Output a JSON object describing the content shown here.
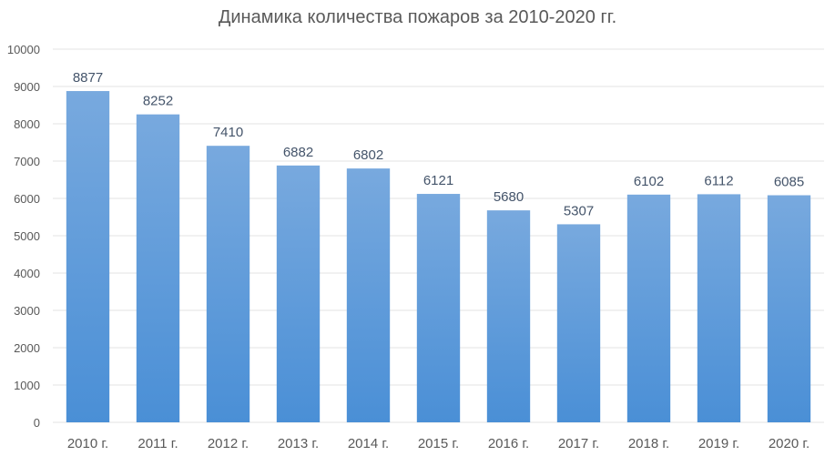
{
  "chart_data": {
    "type": "bar",
    "title": "Динамика количества пожаров за 2010-2020 гг.",
    "xlabel": "",
    "ylabel": "",
    "categories": [
      "2010 г.",
      "2011 г.",
      "2012 г.",
      "2013 г.",
      "2014 г.",
      "2015 г.",
      "2016 г.",
      "2017 г.",
      "2018 г.",
      "2019 г.",
      "2020 г."
    ],
    "values": [
      8877,
      8252,
      7410,
      6882,
      6802,
      6121,
      5680,
      5307,
      6102,
      6112,
      6085
    ],
    "ylim": [
      0,
      10000
    ],
    "yticks": [
      "0",
      "1000",
      "2000",
      "3000",
      "4000",
      "5000",
      "6000",
      "7000",
      "8000",
      "9000",
      "10000"
    ],
    "grid": true,
    "legend": "none",
    "colors": {
      "bar_top": "#78a9de",
      "bar_bottom": "#4a8fd6",
      "data_label": "#44546a",
      "tick_label": "#595959",
      "gridline": "#e3e3e3"
    }
  }
}
